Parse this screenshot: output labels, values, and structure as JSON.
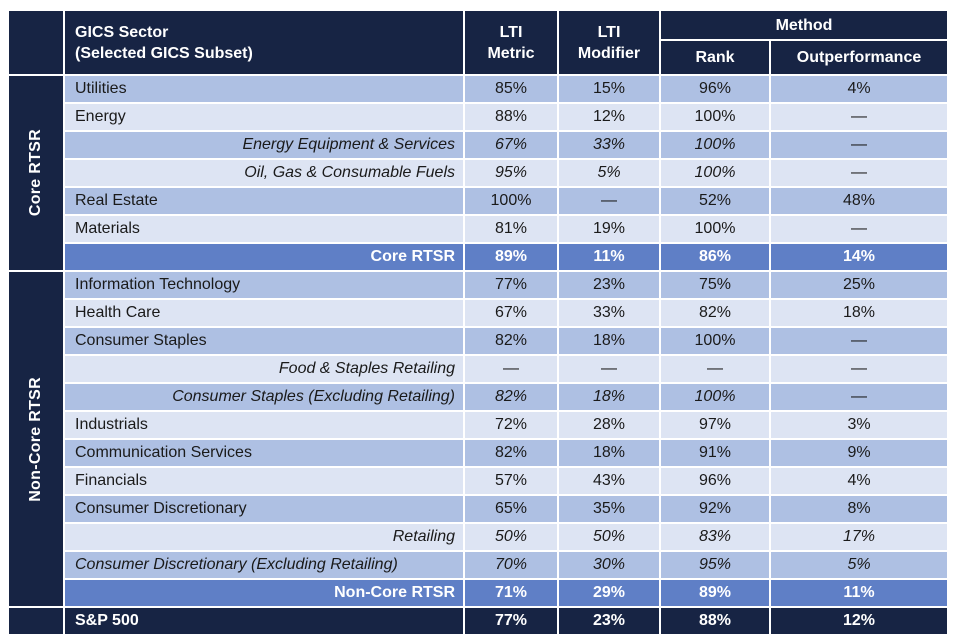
{
  "header": {
    "sector_line1": "GICS Sector",
    "sector_line2": "(Selected GICS Subset)",
    "lti_metric_line1": "LTI",
    "lti_metric_line2": "Metric",
    "lti_modifier_line1": "LTI",
    "lti_modifier_line2": "Modifier",
    "method": "Method",
    "rank": "Rank",
    "outperformance": "Outperformance"
  },
  "groups": {
    "core": "Core RTSR",
    "noncore": "Non-Core RTSR"
  },
  "rows": [
    {
      "name": "Utilities",
      "metric": "85%",
      "modifier": "15%",
      "rank": "96%",
      "out": "4%"
    },
    {
      "name": "Energy",
      "metric": "88%",
      "modifier": "12%",
      "rank": "100%",
      "out": "—"
    },
    {
      "name": "Energy Equipment & Services",
      "metric": "67%",
      "modifier": "33%",
      "rank": "100%",
      "out": "—"
    },
    {
      "name": "Oil, Gas & Consumable Fuels",
      "metric": "95%",
      "modifier": "5%",
      "rank": "100%",
      "out": "—"
    },
    {
      "name": "Real Estate",
      "metric": "100%",
      "modifier": "—",
      "rank": "52%",
      "out": "48%"
    },
    {
      "name": "Materials",
      "metric": "81%",
      "modifier": "19%",
      "rank": "100%",
      "out": "—"
    },
    {
      "name": "Core RTSR",
      "metric": "89%",
      "modifier": "11%",
      "rank": "86%",
      "out": "14%"
    },
    {
      "name": "Information Technology",
      "metric": "77%",
      "modifier": "23%",
      "rank": "75%",
      "out": "25%"
    },
    {
      "name": "Health Care",
      "metric": "67%",
      "modifier": "33%",
      "rank": "82%",
      "out": "18%"
    },
    {
      "name": "Consumer Staples",
      "metric": "82%",
      "modifier": "18%",
      "rank": "100%",
      "out": "—"
    },
    {
      "name": "Food & Staples Retailing",
      "metric": "—",
      "modifier": "—",
      "rank": "—",
      "out": "—"
    },
    {
      "name": "Consumer Staples (Excluding Retailing)",
      "metric": "82%",
      "modifier": "18%",
      "rank": "100%",
      "out": "—"
    },
    {
      "name": "Industrials",
      "metric": "72%",
      "modifier": "28%",
      "rank": "97%",
      "out": "3%"
    },
    {
      "name": "Communication Services",
      "metric": "82%",
      "modifier": "18%",
      "rank": "91%",
      "out": "9%"
    },
    {
      "name": "Financials",
      "metric": "57%",
      "modifier": "43%",
      "rank": "96%",
      "out": "4%"
    },
    {
      "name": "Consumer Discretionary",
      "metric": "65%",
      "modifier": "35%",
      "rank": "92%",
      "out": "8%"
    },
    {
      "name": "Retailing",
      "metric": "50%",
      "modifier": "50%",
      "rank": "83%",
      "out": "17%"
    },
    {
      "name": "Consumer Discretionary (Excluding Retailing)",
      "metric": "70%",
      "modifier": "30%",
      "rank": "95%",
      "out": "5%"
    },
    {
      "name": "Non-Core RTSR",
      "metric": "71%",
      "modifier": "29%",
      "rank": "89%",
      "out": "11%"
    },
    {
      "name": "S&P 500",
      "metric": "77%",
      "modifier": "23%",
      "rank": "88%",
      "out": "12%"
    }
  ],
  "colors": {
    "navy": "#172444",
    "band_dark": "#aec0e3",
    "band_light": "#dde4f3",
    "subtotal": "#5f7fc6"
  }
}
